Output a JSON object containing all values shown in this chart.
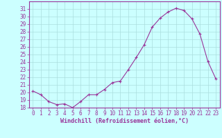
{
  "x": [
    0,
    1,
    2,
    3,
    4,
    5,
    6,
    7,
    8,
    9,
    10,
    11,
    12,
    13,
    14,
    15,
    16,
    17,
    18,
    19,
    20,
    21,
    22,
    23
  ],
  "y": [
    20.2,
    19.7,
    18.8,
    18.4,
    18.5,
    18.0,
    18.8,
    19.7,
    19.7,
    20.4,
    21.3,
    21.5,
    23.0,
    24.6,
    26.3,
    28.6,
    29.8,
    30.6,
    31.1,
    30.8,
    29.7,
    27.7,
    24.1,
    21.8
  ],
  "ylim": [
    18,
    32
  ],
  "yticks": [
    18,
    19,
    20,
    21,
    22,
    23,
    24,
    25,
    26,
    27,
    28,
    29,
    30,
    31
  ],
  "xlim": [
    -0.5,
    23.5
  ],
  "xticks": [
    0,
    1,
    2,
    3,
    4,
    5,
    6,
    7,
    8,
    9,
    10,
    11,
    12,
    13,
    14,
    15,
    16,
    17,
    18,
    19,
    20,
    21,
    22,
    23
  ],
  "line_color": "#993399",
  "marker": "+",
  "bg_color": "#ccffff",
  "grid_color": "#aadddd",
  "xlabel": "Windchill (Refroidissement éolien,°C)",
  "xlabel_color": "#993399",
  "tick_color": "#993399",
  "figsize": [
    3.2,
    2.0
  ],
  "dpi": 100
}
